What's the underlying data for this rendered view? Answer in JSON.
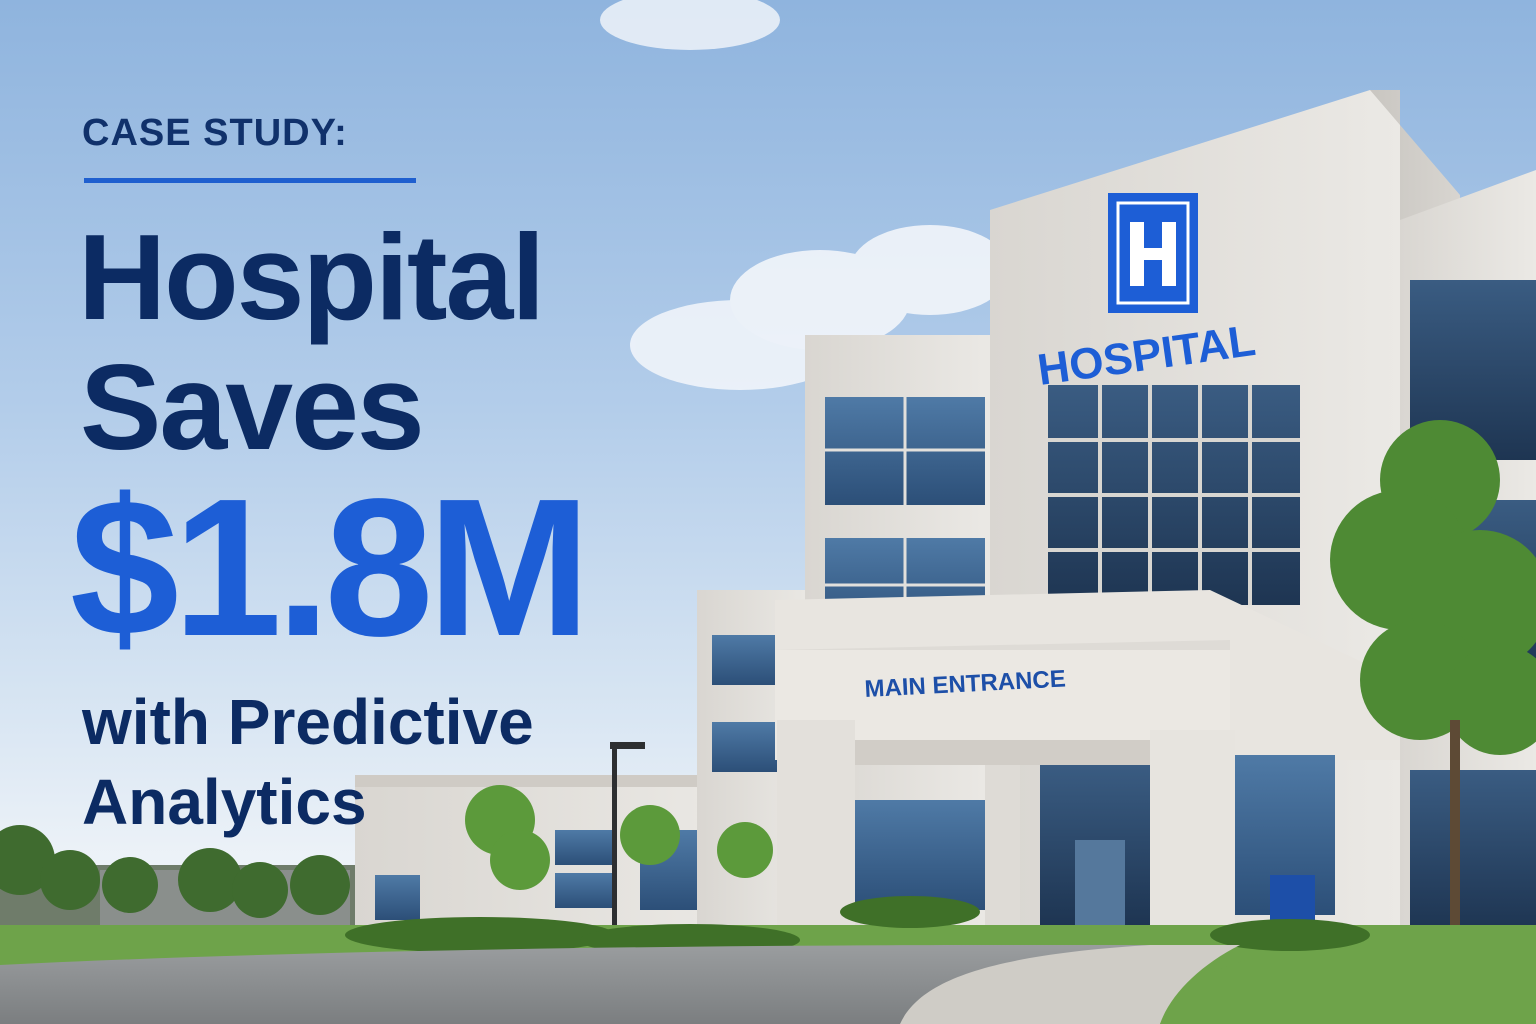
{
  "headline": {
    "eyebrow": "CASE STUDY:",
    "line1": "Hospital",
    "line2": "Saves",
    "amount": "$1.8M",
    "line4": "with Predictive",
    "line5": "Analytics"
  },
  "photo": {
    "building_sign_letter": "H",
    "building_sign_text": "HOSPITAL",
    "entrance_sign_text": "MAIN ENTRANCE"
  },
  "colors": {
    "navy": "#0c2b63",
    "blue_accent": "#1d5ed6",
    "sky": "#a9c6e8",
    "facade": "#e6e3de"
  }
}
